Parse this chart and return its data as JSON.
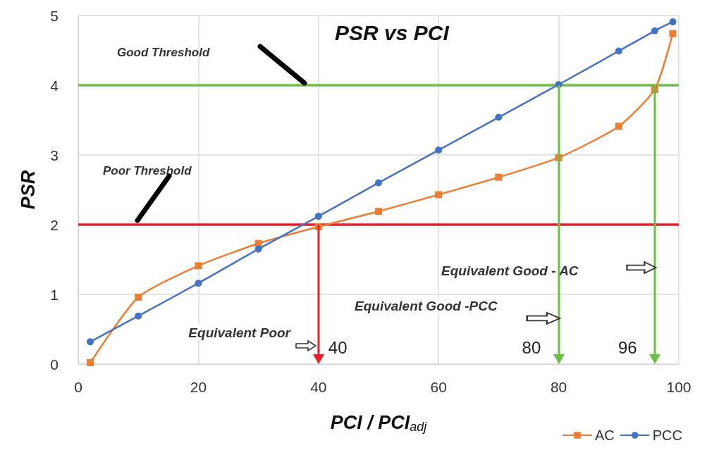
{
  "chart_data": {
    "type": "line",
    "title": "PSR vs PCI",
    "xlabel": "PCI / PCI$_{adj}$",
    "ylabel": "PSR",
    "series": [
      {
        "name": "AC",
        "color": "#ed7d31",
        "marker": "square",
        "x": [
          2,
          10,
          20,
          30,
          40,
          50,
          60,
          70,
          80,
          90,
          96,
          99
        ],
        "values": [
          0.02,
          0.96,
          1.41,
          1.73,
          1.97,
          2.19,
          2.43,
          2.68,
          2.96,
          3.41,
          3.94,
          4.74
        ]
      },
      {
        "name": "PCC",
        "color": "#4472c4",
        "marker": "circle",
        "x": [
          2,
          10,
          20,
          30,
          40,
          50,
          60,
          70,
          80,
          90,
          96,
          99
        ],
        "values": [
          0.32,
          0.69,
          1.16,
          1.65,
          2.12,
          2.6,
          3.07,
          3.54,
          4.01,
          4.49,
          4.78,
          4.91
        ]
      }
    ],
    "xlim": [
      0,
      100
    ],
    "xticks": [
      0,
      20,
      40,
      60,
      80,
      100
    ],
    "ylim": [
      0,
      5
    ],
    "yticks": [
      0,
      1,
      2,
      3,
      4,
      5
    ],
    "ref_lines": [
      {
        "axis": "y",
        "value": 4,
        "label": "Good Threshold",
        "color": "#6abf45"
      },
      {
        "axis": "y",
        "value": 2,
        "label": "Poor Threshold",
        "color": "#ee1c25"
      }
    ],
    "annotations": [
      "Equivalent Poor",
      "Equivalent Good -PCC",
      "Equivalent Good - AC",
      {
        "text": "40",
        "x": 40,
        "y": 2
      },
      {
        "text": "80",
        "x": 80,
        "y": 4
      },
      {
        "text": "96",
        "x": 96,
        "y": 4
      }
    ],
    "grid": true,
    "legend": "bottom right",
    "line_style": "solid"
  }
}
